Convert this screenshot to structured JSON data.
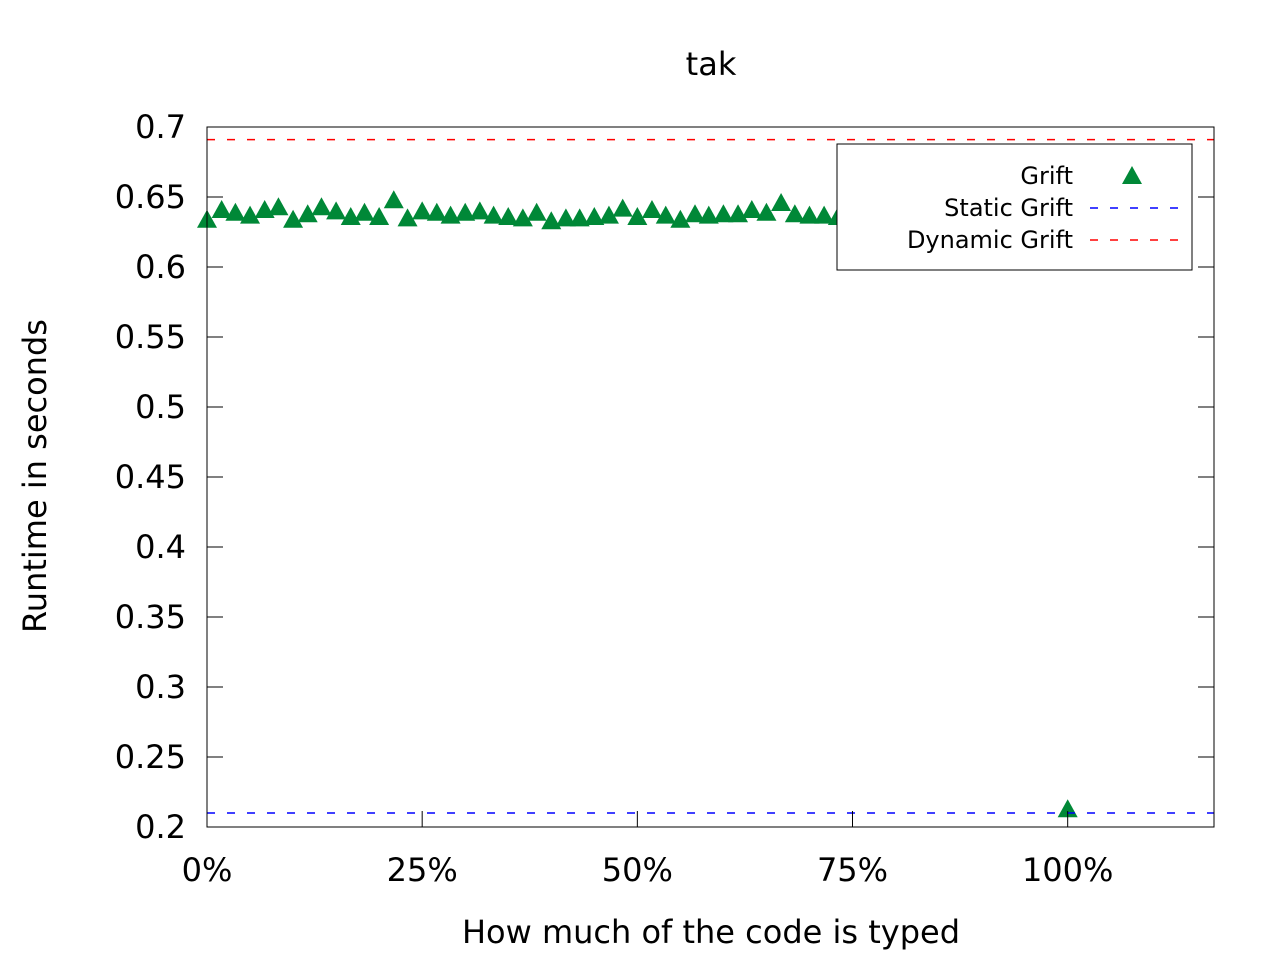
{
  "chart_data": {
    "type": "scatter",
    "title": "tak",
    "xlabel": "How much of the code is typed",
    "ylabel": "Runtime in seconds",
    "xlim": [
      0,
      117
    ],
    "ylim": [
      0.2,
      0.7
    ],
    "x_ticks": [
      {
        "value": 0,
        "label": "0%"
      },
      {
        "value": 25,
        "label": "25%"
      },
      {
        "value": 50,
        "label": "50%"
      },
      {
        "value": 75,
        "label": "75%"
      },
      {
        "value": 100,
        "label": "100%"
      }
    ],
    "y_ticks": [
      {
        "value": 0.2,
        "label": "0.2"
      },
      {
        "value": 0.25,
        "label": "0.25"
      },
      {
        "value": 0.3,
        "label": "0.3"
      },
      {
        "value": 0.35,
        "label": "0.35"
      },
      {
        "value": 0.4,
        "label": "0.4"
      },
      {
        "value": 0.45,
        "label": "0.45"
      },
      {
        "value": 0.5,
        "label": "0.5"
      },
      {
        "value": 0.55,
        "label": "0.55"
      },
      {
        "value": 0.6,
        "label": "0.6"
      },
      {
        "value": 0.65,
        "label": "0.65"
      },
      {
        "value": 0.7,
        "label": "0.7"
      }
    ],
    "grid": false,
    "legend_position": "top-right",
    "series": [
      {
        "name": "Grift",
        "kind": "points",
        "marker": "triangle",
        "color": "#008837",
        "points": [
          [
            0.0,
            0.633
          ],
          [
            1.7,
            0.64
          ],
          [
            3.3,
            0.638
          ],
          [
            5.0,
            0.636
          ],
          [
            6.7,
            0.64
          ],
          [
            8.3,
            0.642
          ],
          [
            10.0,
            0.633
          ],
          [
            11.7,
            0.637
          ],
          [
            13.3,
            0.642
          ],
          [
            15.0,
            0.639
          ],
          [
            16.7,
            0.635
          ],
          [
            18.3,
            0.638
          ],
          [
            20.0,
            0.635
          ],
          [
            21.7,
            0.647
          ],
          [
            23.3,
            0.634
          ],
          [
            25.0,
            0.639
          ],
          [
            26.7,
            0.638
          ],
          [
            28.3,
            0.636
          ],
          [
            30.0,
            0.638
          ],
          [
            31.7,
            0.639
          ],
          [
            33.3,
            0.636
          ],
          [
            35.0,
            0.635
          ],
          [
            36.7,
            0.634
          ],
          [
            38.3,
            0.638
          ],
          [
            40.0,
            0.632
          ],
          [
            41.7,
            0.634
          ],
          [
            43.3,
            0.634
          ],
          [
            45.0,
            0.635
          ],
          [
            46.7,
            0.636
          ],
          [
            48.3,
            0.641
          ],
          [
            50.0,
            0.635
          ],
          [
            51.7,
            0.64
          ],
          [
            53.3,
            0.636
          ],
          [
            55.0,
            0.633
          ],
          [
            56.7,
            0.637
          ],
          [
            58.3,
            0.636
          ],
          [
            60.0,
            0.637
          ],
          [
            61.7,
            0.637
          ],
          [
            63.3,
            0.64
          ],
          [
            65.0,
            0.638
          ],
          [
            66.7,
            0.645
          ],
          [
            68.3,
            0.637
          ],
          [
            70.0,
            0.636
          ],
          [
            71.7,
            0.636
          ],
          [
            73.3,
            0.635
          ],
          [
            100.0,
            0.212
          ]
        ]
      },
      {
        "name": "Static Grift",
        "kind": "hline",
        "y": 0.21,
        "color": "#0000ff"
      },
      {
        "name": "Dynamic Grift",
        "kind": "hline",
        "y": 0.691,
        "color": "#ff0000"
      }
    ]
  }
}
